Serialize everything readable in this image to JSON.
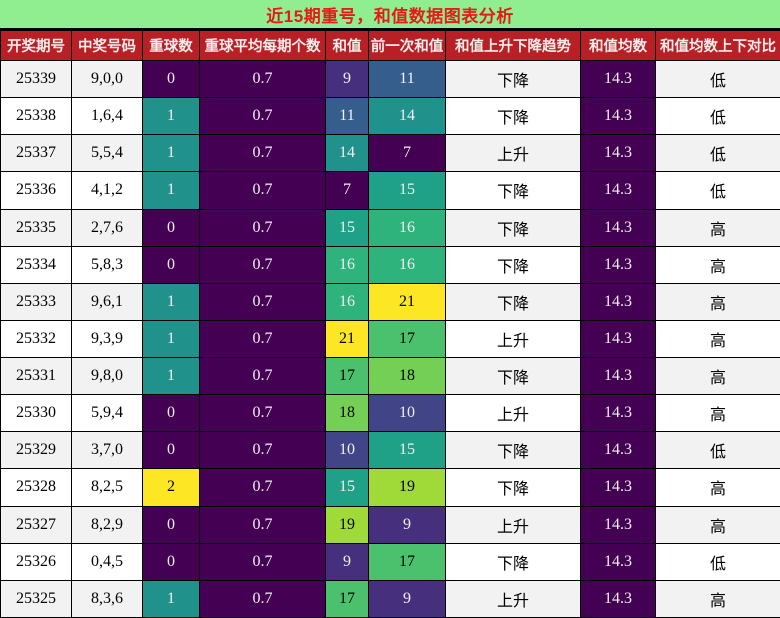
{
  "title": {
    "text": "近15期重号，和值数据图表分析"
  },
  "theme": {
    "title_bg": "#90ee90",
    "title_fg": "#e41b17",
    "header_bg": "#b92025",
    "header_fg": "#f5ecec",
    "stripe_bg": "#f2f2f2",
    "row_bg": "#ffffff",
    "border": "#000000",
    "dark_cell_fg": "#f1f1f1",
    "light_cell_fg": "#000000"
  },
  "columns": [
    {
      "key": "period",
      "label": "开奖期号",
      "gradient": false
    },
    {
      "key": "numbers",
      "label": "中奖号码",
      "gradient": false
    },
    {
      "key": "repeat",
      "label": "重球数",
      "gradient": true
    },
    {
      "key": "repeat_avg",
      "label": "重球平均每期个数",
      "gradient": true
    },
    {
      "key": "sum",
      "label": "和值",
      "gradient": true
    },
    {
      "key": "prev_sum",
      "label": "前一次和值",
      "gradient": true
    },
    {
      "key": "trend",
      "label": "和值上升下降趋势",
      "gradient": false
    },
    {
      "key": "avg",
      "label": "和值均数",
      "gradient": true
    },
    {
      "key": "compare",
      "label": "和值均数上下对比",
      "gradient": false
    }
  ],
  "value_colors": {
    "0": {
      "bg": "#440154",
      "fg": "#f1f1f1"
    },
    "1": {
      "bg": "#21918c",
      "fg": "#f1f1f1"
    },
    "2": {
      "bg": "#fde725",
      "fg": "#000000"
    },
    "0.7": {
      "bg": "#440154",
      "fg": "#f1f1f1"
    },
    "14.3": {
      "bg": "#440154",
      "fg": "#f1f1f1"
    },
    "7": {
      "bg": "#440154",
      "fg": "#f1f1f1"
    },
    "9": {
      "bg": "#46307d",
      "fg": "#f1f1f1"
    },
    "10": {
      "bg": "#414487",
      "fg": "#f1f1f1"
    },
    "11": {
      "bg": "#355e8d",
      "fg": "#f1f1f1"
    },
    "14": {
      "bg": "#21918c",
      "fg": "#f1f1f1"
    },
    "15": {
      "bg": "#1fa188",
      "fg": "#f1f1f1"
    },
    "16": {
      "bg": "#2eb37c",
      "fg": "#f1f1f1"
    },
    "17": {
      "bg": "#4bc16d",
      "fg": "#000000"
    },
    "18": {
      "bg": "#74d055",
      "fg": "#000000"
    },
    "19": {
      "bg": "#a0da39",
      "fg": "#000000"
    },
    "21": {
      "bg": "#fde725",
      "fg": "#000000"
    }
  },
  "rows": [
    {
      "period": "25339",
      "numbers": "9,0,0",
      "repeat": "0",
      "repeat_avg": "0.7",
      "sum": "9",
      "prev_sum": "11",
      "trend": "下降",
      "avg": "14.3",
      "compare": "低"
    },
    {
      "period": "25338",
      "numbers": "1,6,4",
      "repeat": "1",
      "repeat_avg": "0.7",
      "sum": "11",
      "prev_sum": "14",
      "trend": "下降",
      "avg": "14.3",
      "compare": "低"
    },
    {
      "period": "25337",
      "numbers": "5,5,4",
      "repeat": "1",
      "repeat_avg": "0.7",
      "sum": "14",
      "prev_sum": "7",
      "trend": "上升",
      "avg": "14.3",
      "compare": "低"
    },
    {
      "period": "25336",
      "numbers": "4,1,2",
      "repeat": "1",
      "repeat_avg": "0.7",
      "sum": "7",
      "prev_sum": "15",
      "trend": "下降",
      "avg": "14.3",
      "compare": "低"
    },
    {
      "period": "25335",
      "numbers": "2,7,6",
      "repeat": "0",
      "repeat_avg": "0.7",
      "sum": "15",
      "prev_sum": "16",
      "trend": "下降",
      "avg": "14.3",
      "compare": "高"
    },
    {
      "period": "25334",
      "numbers": "5,8,3",
      "repeat": "0",
      "repeat_avg": "0.7",
      "sum": "16",
      "prev_sum": "16",
      "trend": "下降",
      "avg": "14.3",
      "compare": "高"
    },
    {
      "period": "25333",
      "numbers": "9,6,1",
      "repeat": "1",
      "repeat_avg": "0.7",
      "sum": "16",
      "prev_sum": "21",
      "trend": "下降",
      "avg": "14.3",
      "compare": "高"
    },
    {
      "period": "25332",
      "numbers": "9,3,9",
      "repeat": "1",
      "repeat_avg": "0.7",
      "sum": "21",
      "prev_sum": "17",
      "trend": "上升",
      "avg": "14.3",
      "compare": "高"
    },
    {
      "period": "25331",
      "numbers": "9,8,0",
      "repeat": "1",
      "repeat_avg": "0.7",
      "sum": "17",
      "prev_sum": "18",
      "trend": "下降",
      "avg": "14.3",
      "compare": "高"
    },
    {
      "period": "25330",
      "numbers": "5,9,4",
      "repeat": "0",
      "repeat_avg": "0.7",
      "sum": "18",
      "prev_sum": "10",
      "trend": "上升",
      "avg": "14.3",
      "compare": "高"
    },
    {
      "period": "25329",
      "numbers": "3,7,0",
      "repeat": "0",
      "repeat_avg": "0.7",
      "sum": "10",
      "prev_sum": "15",
      "trend": "下降",
      "avg": "14.3",
      "compare": "低"
    },
    {
      "period": "25328",
      "numbers": "8,2,5",
      "repeat": "2",
      "repeat_avg": "0.7",
      "sum": "15",
      "prev_sum": "19",
      "trend": "下降",
      "avg": "14.3",
      "compare": "高"
    },
    {
      "period": "25327",
      "numbers": "8,2,9",
      "repeat": "0",
      "repeat_avg": "0.7",
      "sum": "19",
      "prev_sum": "9",
      "trend": "上升",
      "avg": "14.3",
      "compare": "高"
    },
    {
      "period": "25326",
      "numbers": "0,4,5",
      "repeat": "0",
      "repeat_avg": "0.7",
      "sum": "9",
      "prev_sum": "17",
      "trend": "下降",
      "avg": "14.3",
      "compare": "低"
    },
    {
      "period": "25325",
      "numbers": "8,3,6",
      "repeat": "1",
      "repeat_avg": "0.7",
      "sum": "17",
      "prev_sum": "9",
      "trend": "上升",
      "avg": "14.3",
      "compare": "高"
    }
  ],
  "chart_data": {
    "type": "table",
    "title": "近15期重号，和值数据图表分析",
    "columns": [
      "开奖期号",
      "中奖号码",
      "重球数",
      "重球平均每期个数",
      "和值",
      "前一次和值",
      "和值上升下降趋势",
      "和值均数",
      "和值均数上下对比"
    ],
    "x": [
      25339,
      25338,
      25337,
      25336,
      25335,
      25334,
      25333,
      25332,
      25331,
      25330,
      25329,
      25328,
      25327,
      25326,
      25325
    ],
    "series": [
      {
        "name": "重球数",
        "values": [
          0,
          1,
          1,
          1,
          0,
          0,
          1,
          1,
          1,
          0,
          0,
          2,
          0,
          0,
          1
        ]
      },
      {
        "name": "重球平均每期个数",
        "values": [
          0.7,
          0.7,
          0.7,
          0.7,
          0.7,
          0.7,
          0.7,
          0.7,
          0.7,
          0.7,
          0.7,
          0.7,
          0.7,
          0.7,
          0.7
        ]
      },
      {
        "name": "和值",
        "values": [
          9,
          11,
          14,
          7,
          15,
          16,
          16,
          21,
          17,
          18,
          10,
          15,
          19,
          9,
          17
        ]
      },
      {
        "name": "前一次和值",
        "values": [
          11,
          14,
          7,
          15,
          16,
          16,
          21,
          17,
          18,
          10,
          15,
          19,
          9,
          17,
          9
        ]
      },
      {
        "name": "和值均数",
        "values": [
          14.3,
          14.3,
          14.3,
          14.3,
          14.3,
          14.3,
          14.3,
          14.3,
          14.3,
          14.3,
          14.3,
          14.3,
          14.3,
          14.3,
          14.3
        ]
      }
    ],
    "heatmap_colormap": "viridis",
    "heatmap_range_sum": [
      7,
      21
    ],
    "heatmap_range_repeat": [
      0,
      2
    ]
  }
}
